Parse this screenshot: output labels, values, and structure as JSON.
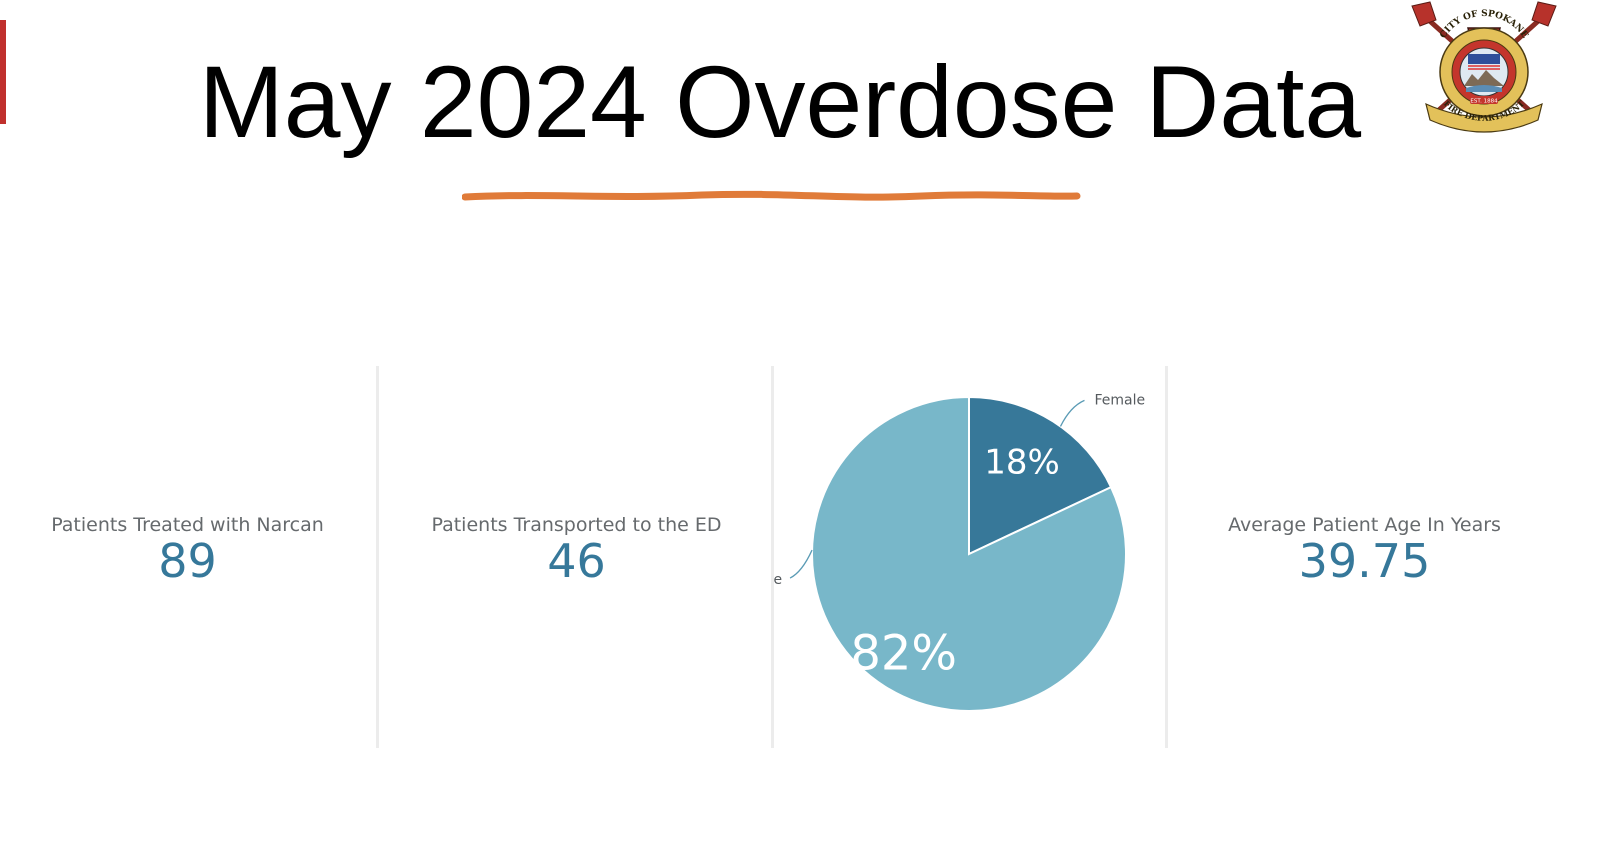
{
  "slide": {
    "title": "May 2024 Overdose Data",
    "accent_color": "#c0302d",
    "underline_color": "#e07b39"
  },
  "logo": {
    "icon": "spokane-fire-department-seal-icon",
    "ring_text_top": "CITY OF SPOKANE",
    "ring_text_bottom": "FIRE DEPARTMENT",
    "est_text": "EST. 1884"
  },
  "kpis": [
    {
      "label": "Patients Treated with Narcan",
      "value": "89"
    },
    {
      "label": "Patients Transported to the ED",
      "value": "46"
    },
    {
      "label": "Average Patient Age In Years",
      "value": "39.75"
    }
  ],
  "chart_data": {
    "type": "pie",
    "title": "",
    "categories": [
      "Female",
      "Male"
    ],
    "values": [
      18,
      82
    ],
    "labels": [
      "18%",
      "82%"
    ],
    "colors": [
      "#377899",
      "#78b7c9"
    ],
    "legend": "callout labels"
  }
}
